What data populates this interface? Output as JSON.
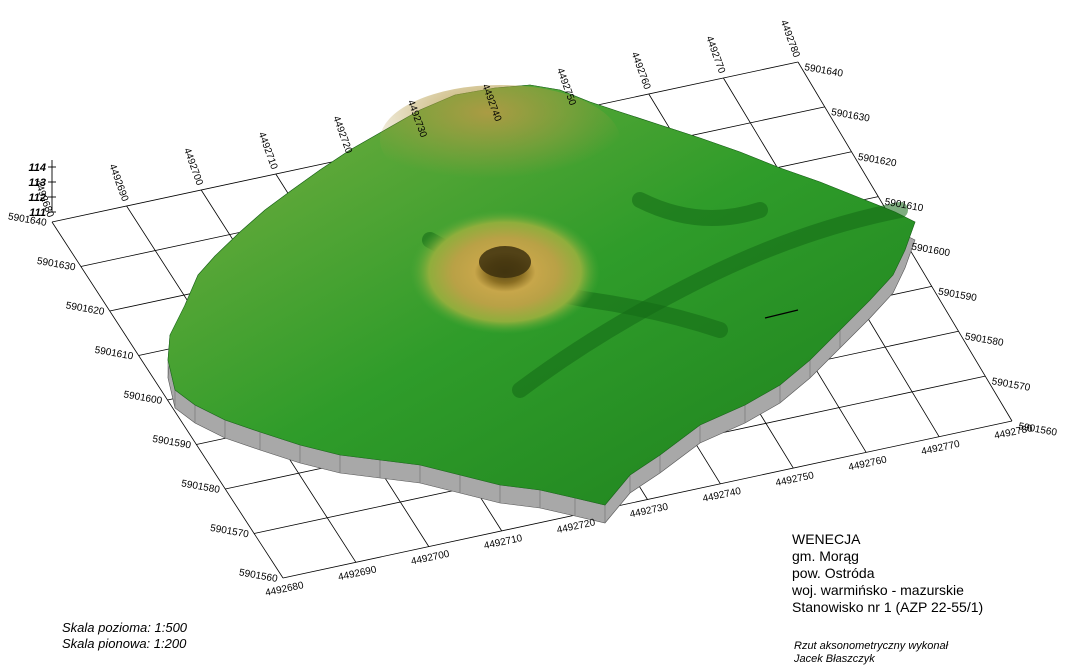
{
  "site": {
    "name": "WENECJA",
    "gmina": "gm. Morąg",
    "powiat": "pow. Ostróda",
    "wojewodztwo": "woj. warmińsko - mazurskie",
    "stanowisko": "Stanowisko nr 1 (AZP 22-55/1)"
  },
  "scale": {
    "horizontal": "Skala pozioma: 1:500",
    "vertical": "Skala pionowa: 1:200"
  },
  "credit": {
    "line1": "Rzut aksonometryczny wykonał",
    "line2": "Jacek Błaszczyk"
  },
  "axes": {
    "x_bottom": [
      "4492680",
      "4492690",
      "4492700",
      "4492710",
      "4492720",
      "4492730",
      "4492740",
      "4492750",
      "4492760",
      "4492770",
      "4492780"
    ],
    "x_top": [
      "4492680",
      "4492690",
      "4492700",
      "4492710",
      "4492720",
      "4492730",
      "4492740",
      "4492750",
      "4492760",
      "4492770",
      "4492780"
    ],
    "y_left": [
      "5901560",
      "5901570",
      "5901580",
      "5901590",
      "5901600",
      "5901610",
      "5901620",
      "5901630",
      "5901640"
    ],
    "y_right": [
      "5901560",
      "5901570",
      "5901580",
      "5901590",
      "5901600",
      "5901610",
      "5901620",
      "5901630",
      "5901640"
    ],
    "z": [
      "111",
      "112",
      "113",
      "114"
    ]
  },
  "colors": {
    "terrain_low": "#1f8a1c",
    "terrain_mid": "#4fb33a",
    "terrain_high": "#c8a844",
    "mound_top": "#b8963a",
    "skirt": "#a8a8a8",
    "grid": "#000000"
  }
}
